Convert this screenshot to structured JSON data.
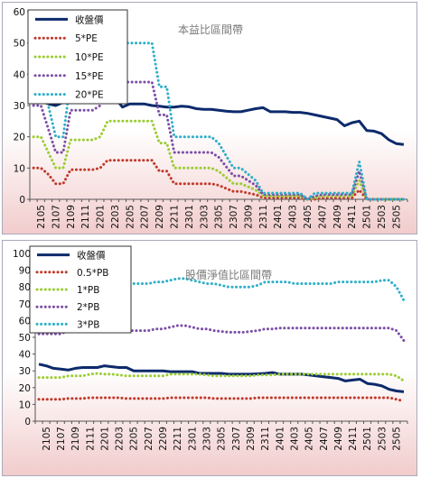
{
  "chart_data": [
    {
      "type": "line",
      "title": "本益比區間帶",
      "ylim": [
        0,
        60
      ],
      "yticks": [
        0,
        10,
        20,
        30,
        40,
        50,
        60
      ],
      "grid": false,
      "legend_position": "top-left",
      "x": [
        "2104",
        "2105",
        "2106",
        "2107",
        "2108",
        "2109",
        "2110",
        "2111",
        "2112",
        "2201",
        "2202",
        "2203",
        "2204",
        "2205",
        "2206",
        "2207",
        "2208",
        "2209",
        "2210",
        "2211",
        "2212",
        "2301",
        "2302",
        "2303",
        "2304",
        "2305",
        "2306",
        "2307",
        "2308",
        "2309",
        "2310",
        "2311",
        "2312",
        "2401",
        "2402",
        "2403",
        "2404",
        "2405",
        "2406",
        "2407",
        "2408",
        "2409",
        "2410",
        "2411",
        "2412",
        "2501",
        "2502",
        "2503",
        "2504",
        "2505",
        "2506"
      ],
      "xtick_labels": [
        "2105",
        "2107",
        "2109",
        "2111",
        "2201",
        "2203",
        "2205",
        "2207",
        "2209",
        "2211",
        "2301",
        "2303",
        "2305",
        "2307",
        "2309",
        "2311",
        "2401",
        "2403",
        "2405",
        "2407",
        "2409",
        "2411",
        "2501",
        "2503",
        "2505"
      ],
      "series": [
        {
          "name": "收盤價",
          "color": "#0d2a6b",
          "style": "solid",
          "values": [
            31,
            31.5,
            30.5,
            30,
            31,
            31,
            32,
            33,
            33,
            33.5,
            33,
            32.5,
            29.5,
            30.5,
            30.5,
            30.5,
            30,
            29.8,
            29.5,
            29.5,
            29.8,
            29.6,
            29,
            28.8,
            28.8,
            28.5,
            28.2,
            28,
            28,
            28.5,
            29,
            29.3,
            28,
            28,
            28,
            27.8,
            27.8,
            27.5,
            27,
            26.5,
            26,
            25.5,
            23.5,
            24.5,
            25,
            22,
            21.8,
            21,
            19,
            17.8,
            17.5
          ]
        },
        {
          "name": "5*PE",
          "color": "#c0392b",
          "style": "dotted",
          "values": [
            10,
            10,
            8,
            5,
            5,
            9.5,
            9.5,
            9.5,
            9.5,
            10,
            12.5,
            12.5,
            12.5,
            12.5,
            12.5,
            12.5,
            12.5,
            9,
            9,
            5,
            5,
            5,
            5,
            5,
            5,
            4.5,
            3.5,
            2.5,
            2.5,
            2,
            1.5,
            0.5,
            0.5,
            0.5,
            0.5,
            0.5,
            0.5,
            0,
            0,
            0.5,
            0.5,
            0.5,
            0.5,
            0.5,
            3,
            0,
            0,
            0,
            0,
            0,
            0
          ]
        },
        {
          "name": "10*PE",
          "color": "#9acd32",
          "style": "dotted",
          "values": [
            20,
            20,
            15,
            10,
            10,
            19,
            19,
            19,
            19,
            20,
            25,
            25,
            25,
            25,
            25,
            25,
            25,
            18,
            18,
            10,
            10,
            10,
            10,
            10,
            10,
            9,
            7,
            5,
            5,
            4,
            3,
            1,
            1,
            1,
            1,
            1,
            1,
            0,
            0.5,
            1,
            1,
            1,
            1,
            1,
            6,
            0,
            0,
            0,
            0,
            0,
            0
          ]
        },
        {
          "name": "15*PE",
          "color": "#7b4fa6",
          "style": "dotted",
          "values": [
            30,
            30,
            22.5,
            15,
            15,
            28.5,
            28.5,
            28.5,
            28.5,
            30,
            37.5,
            37.5,
            37.5,
            37.5,
            37.5,
            37.5,
            37.5,
            27,
            27,
            15,
            15,
            15,
            15,
            15,
            15,
            13.5,
            10.5,
            7.5,
            7.5,
            6,
            4.5,
            1.5,
            1.5,
            1.5,
            1.5,
            1.5,
            1.5,
            0,
            1,
            1.5,
            1.5,
            1.5,
            1.5,
            1.5,
            9,
            0,
            0,
            0,
            0,
            0,
            0
          ]
        },
        {
          "name": "20*PE",
          "color": "#2eafc8",
          "style": "dotted",
          "values": [
            40,
            40,
            30,
            20,
            20,
            38,
            38,
            38,
            38,
            40,
            50,
            50,
            50,
            50,
            50,
            50,
            50,
            36,
            36,
            20,
            20,
            20,
            20,
            20,
            20,
            18,
            14,
            10,
            10,
            8,
            6,
            2,
            2,
            2,
            2,
            2,
            2,
            0,
            2,
            2,
            2,
            2,
            2,
            2,
            12,
            0,
            0,
            0,
            0,
            0,
            0
          ]
        }
      ]
    },
    {
      "type": "line",
      "title": "股價淨值比區間帶",
      "ylim": [
        0,
        100
      ],
      "yticks": [
        0,
        10,
        20,
        30,
        40,
        50,
        60,
        70,
        80,
        90,
        100
      ],
      "grid": false,
      "legend_position": "top-left",
      "x": [
        "2104",
        "2105",
        "2106",
        "2107",
        "2108",
        "2109",
        "2110",
        "2111",
        "2112",
        "2201",
        "2202",
        "2203",
        "2204",
        "2205",
        "2206",
        "2207",
        "2208",
        "2209",
        "2210",
        "2211",
        "2212",
        "2301",
        "2302",
        "2303",
        "2304",
        "2305",
        "2306",
        "2307",
        "2308",
        "2309",
        "2310",
        "2311",
        "2312",
        "2401",
        "2402",
        "2403",
        "2404",
        "2405",
        "2406",
        "2407",
        "2408",
        "2409",
        "2410",
        "2411",
        "2412",
        "2501",
        "2502",
        "2503",
        "2504",
        "2505",
        "2506"
      ],
      "xtick_labels": [
        "2105",
        "2107",
        "2109",
        "2111",
        "2201",
        "2203",
        "2205",
        "2207",
        "2209",
        "2211",
        "2301",
        "2303",
        "2305",
        "2307",
        "2309",
        "2311",
        "2401",
        "2403",
        "2405",
        "2407",
        "2409",
        "2411",
        "2501",
        "2503",
        "2505"
      ],
      "series": [
        {
          "name": "收盤價",
          "color": "#0d2a6b",
          "style": "solid",
          "values": [
            34,
            33,
            31.5,
            31,
            30.5,
            31.5,
            32,
            32,
            32,
            33,
            32.5,
            32,
            32,
            30,
            30,
            30,
            30,
            30,
            29.5,
            29.5,
            29.5,
            29.5,
            28.5,
            28.5,
            28.5,
            28.5,
            28,
            28,
            28,
            28,
            28.2,
            28.5,
            29,
            28,
            28,
            28,
            28,
            27.5,
            27,
            26.5,
            26,
            25.5,
            24,
            24.5,
            25,
            22.5,
            22,
            21,
            19,
            18,
            17.5
          ]
        },
        {
          "name": "0.5*PB",
          "color": "#c0392b",
          "style": "dotted",
          "values": [
            13,
            13,
            13,
            13,
            13.5,
            13.5,
            13.5,
            14,
            14,
            14,
            14,
            14,
            13.5,
            13.5,
            13.5,
            13.5,
            13.5,
            13.5,
            14,
            14,
            14,
            14,
            14,
            14,
            13.5,
            13.5,
            13.5,
            13.5,
            13.5,
            13.5,
            14,
            14,
            14,
            14,
            14,
            14,
            14,
            14,
            14,
            14,
            14,
            14,
            14,
            14,
            14,
            14,
            14,
            14,
            14,
            13,
            12
          ]
        },
        {
          "name": "1*PB",
          "color": "#9acd32",
          "style": "dotted",
          "values": [
            26,
            26,
            26,
            26,
            27,
            27,
            27,
            28,
            28.5,
            28,
            28,
            27.5,
            27,
            27,
            27,
            27,
            27,
            27,
            28,
            28,
            28,
            28,
            28,
            27.5,
            27,
            27,
            27,
            27,
            27,
            27,
            27.5,
            27.5,
            27.5,
            28,
            28,
            28,
            28,
            28,
            28,
            28,
            28,
            28,
            28,
            28,
            28,
            28,
            28,
            28,
            28,
            27,
            24
          ]
        },
        {
          "name": "2*PB",
          "color": "#7b4fa6",
          "style": "dotted",
          "values": [
            52,
            52,
            52,
            52,
            54,
            54,
            55,
            57,
            57,
            56,
            56,
            55,
            54,
            54,
            54,
            54,
            55,
            55,
            56,
            57,
            57,
            56,
            55,
            55,
            54,
            53.5,
            53,
            53,
            53,
            53.5,
            54,
            55,
            55,
            55.5,
            55.5,
            55.5,
            55.5,
            55.5,
            55.5,
            55.5,
            55.5,
            55.5,
            55.5,
            55.5,
            55.5,
            55.5,
            55.5,
            55.5,
            55.5,
            54,
            48
          ]
        },
        {
          "name": "3*PB",
          "color": "#2eafc8",
          "style": "dotted",
          "values": [
            78,
            78,
            78,
            78,
            81,
            81,
            82,
            85,
            86,
            84,
            84,
            83,
            82,
            82,
            82,
            82,
            83,
            83,
            84,
            85,
            85,
            84,
            83,
            82,
            82,
            81,
            80,
            80,
            80,
            80,
            81,
            83,
            83,
            83,
            83,
            82,
            82,
            82,
            82,
            82,
            82,
            83,
            83,
            83,
            83,
            83,
            83,
            84,
            84,
            80,
            72
          ]
        }
      ]
    }
  ]
}
